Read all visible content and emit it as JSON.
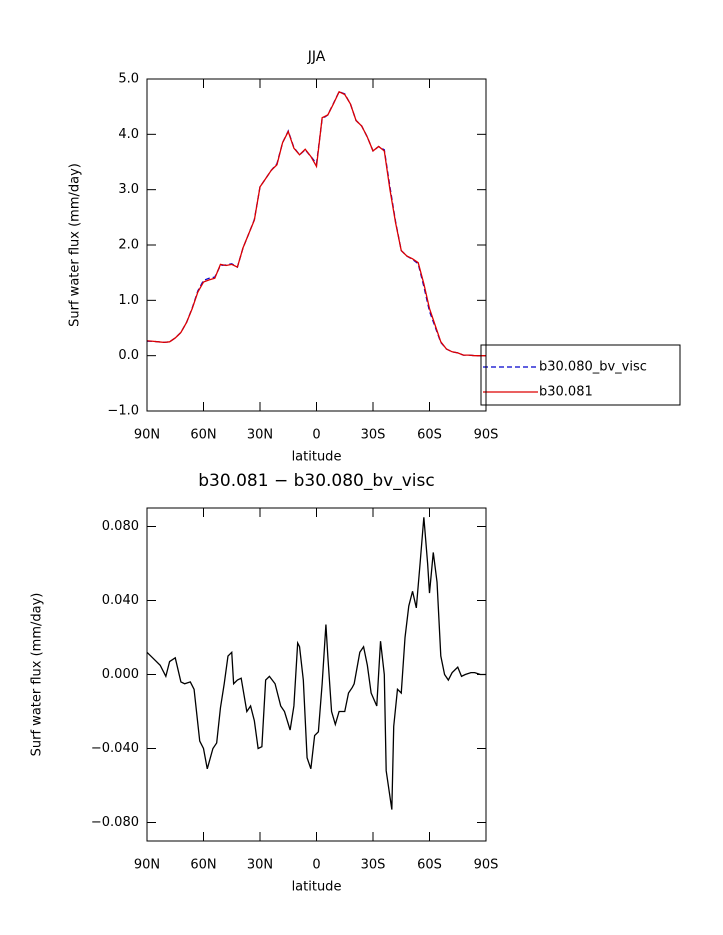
{
  "chart_data": [
    {
      "type": "line",
      "title": "JJA",
      "ylabel": "Surf water flux (mm/day)",
      "xlabel": "latitude",
      "x": [
        90,
        87,
        84,
        81,
        78,
        75,
        72,
        69,
        66,
        63,
        60,
        57,
        54,
        51,
        48,
        45,
        42,
        39,
        36,
        33,
        30,
        27,
        24,
        21,
        18,
        15,
        12,
        9,
        6,
        3,
        0,
        -3,
        -6,
        -9,
        -12,
        -15,
        -18,
        -21,
        -24,
        -27,
        -30,
        -33,
        -36,
        -39,
        -42,
        -45,
        -48,
        -51,
        -54,
        -57,
        -60,
        -63,
        -66,
        -69,
        -72,
        -75,
        -78,
        -81,
        -84,
        -87,
        -90
      ],
      "series": [
        {
          "name": "b30.080_bv_visc",
          "color": "#0000cc",
          "dash": true,
          "values": [
            0.26,
            0.26,
            0.25,
            0.24,
            0.25,
            0.32,
            0.42,
            0.6,
            0.86,
            1.17,
            1.36,
            1.4,
            1.42,
            1.63,
            1.64,
            1.66,
            1.6,
            1.95,
            2.2,
            2.46,
            3.05,
            3.2,
            3.35,
            3.47,
            3.85,
            4.06,
            3.76,
            3.63,
            3.72,
            3.6,
            3.47,
            4.28,
            4.35,
            4.56,
            4.77,
            4.73,
            4.55,
            4.25,
            4.15,
            3.95,
            3.7,
            3.78,
            3.72,
            3.05,
            2.42,
            1.9,
            1.8,
            1.74,
            1.66,
            1.25,
            0.8,
            0.52,
            0.24,
            0.12,
            0.07,
            0.05,
            0.01,
            0.01,
            0,
            0,
            0
          ]
        },
        {
          "name": "b30.081",
          "color": "#dd0000",
          "dash": false,
          "values": [
            0.27,
            0.26,
            0.25,
            0.24,
            0.25,
            0.32,
            0.42,
            0.6,
            0.85,
            1.15,
            1.33,
            1.37,
            1.4,
            1.65,
            1.63,
            1.65,
            1.6,
            1.95,
            2.2,
            2.45,
            3.05,
            3.2,
            3.35,
            3.45,
            3.85,
            4.05,
            3.75,
            3.63,
            3.73,
            3.6,
            3.42,
            4.3,
            4.35,
            4.55,
            4.77,
            4.72,
            4.55,
            4.25,
            4.15,
            3.95,
            3.7,
            3.78,
            3.7,
            3.0,
            2.4,
            1.9,
            1.8,
            1.75,
            1.68,
            1.3,
            0.85,
            0.55,
            0.25,
            0.12,
            0.07,
            0.05,
            0.01,
            0.01,
            0,
            0,
            0
          ]
        }
      ],
      "xlim": [
        90,
        -90
      ],
      "xticks": [
        {
          "value": 90,
          "label": "90N"
        },
        {
          "value": 60,
          "label": "60N"
        },
        {
          "value": 30,
          "label": "30N"
        },
        0,
        {
          "value": -30,
          "label": "30S"
        },
        {
          "value": -60,
          "label": "60S"
        },
        {
          "value": -90,
          "label": "90S"
        }
      ],
      "ylim": [
        -1,
        5
      ],
      "yticks": [
        {
          "value": -1,
          "label": "−1.0"
        },
        {
          "value": 0,
          "label": "0.0"
        },
        {
          "value": 1,
          "label": "1.0"
        },
        {
          "value": 2,
          "label": "2.0"
        },
        {
          "value": 3,
          "label": "3.0"
        },
        {
          "value": 4,
          "label": "4.0"
        },
        {
          "value": 5,
          "label": "5.0"
        }
      ],
      "legend": "right"
    },
    {
      "type": "line",
      "title": "b30.081 − b30.080_bv_visc",
      "ylabel": "Surf water flux (mm/day)",
      "xlabel": "latitude",
      "x": [
        90,
        86,
        83,
        80,
        78,
        75,
        72,
        70,
        67,
        65,
        62,
        60,
        58,
        55,
        53,
        51,
        49,
        47,
        45,
        44,
        42,
        40,
        37,
        35,
        33,
        31,
        29,
        27,
        25,
        22,
        19,
        17,
        14,
        12,
        10,
        9,
        7,
        5,
        3,
        1,
        -1,
        -3,
        -5,
        -6,
        -8,
        -10,
        -12,
        -15,
        -17,
        -19,
        -20,
        -23,
        -25,
        -27,
        -29,
        -32,
        -34,
        -36,
        -37,
        -40,
        -41,
        -43,
        -45,
        -47,
        -49,
        -51,
        -53,
        -55,
        -57,
        -59,
        -60,
        -62,
        -64,
        -66,
        -68,
        -70,
        -72,
        -75,
        -77,
        -79,
        -82,
        -84,
        -87,
        -90
      ],
      "series": [
        {
          "name": null,
          "color": "#000000",
          "dash": false,
          "values": [
            0.012,
            0.008,
            0.005,
            -0.001,
            0.007,
            0.009,
            -0.004,
            -0.005,
            -0.004,
            -0.008,
            -0.036,
            -0.04,
            -0.051,
            -0.04,
            -0.037,
            -0.018,
            -0.005,
            0.01,
            0.012,
            -0.005,
            -0.003,
            -0.002,
            -0.02,
            -0.017,
            -0.025,
            -0.04,
            -0.039,
            -0.003,
            -0.001,
            -0.005,
            -0.017,
            -0.02,
            -0.03,
            -0.017,
            0.017,
            0.015,
            -0.003,
            -0.045,
            -0.051,
            -0.033,
            -0.031,
            -0.005,
            0.027,
            0.01,
            -0.02,
            -0.027,
            -0.02,
            -0.02,
            -0.01,
            -0.007,
            -0.005,
            0.012,
            0.015,
            0.005,
            -0.01,
            -0.017,
            0.018,
            0,
            -0.052,
            -0.073,
            -0.028,
            -0.008,
            -0.01,
            0.02,
            0.037,
            0.045,
            0.036,
            0.06,
            0.085,
            0.06,
            0.044,
            0.066,
            0.05,
            0.01,
            0,
            -0.003,
            0.001,
            0.004,
            -0.001,
            0,
            0.001,
            0.001,
            0,
            0
          ]
        }
      ],
      "xlim": [
        90,
        -90
      ],
      "xticks": [
        {
          "value": 90,
          "label": "90N"
        },
        {
          "value": 60,
          "label": "60N"
        },
        {
          "value": 30,
          "label": "30N"
        },
        0,
        {
          "value": -30,
          "label": "30S"
        },
        {
          "value": -60,
          "label": "60S"
        },
        {
          "value": -90,
          "label": "90S"
        }
      ],
      "ylim": [
        -0.09,
        0.09
      ],
      "yticks": [
        {
          "value": -0.08,
          "label": "−0.080"
        },
        {
          "value": -0.04,
          "label": "−0.040"
        },
        {
          "value": 0,
          "label": "0.000"
        },
        {
          "value": 0.04,
          "label": "0.040"
        },
        {
          "value": 0.08,
          "label": "0.080"
        }
      ]
    }
  ]
}
